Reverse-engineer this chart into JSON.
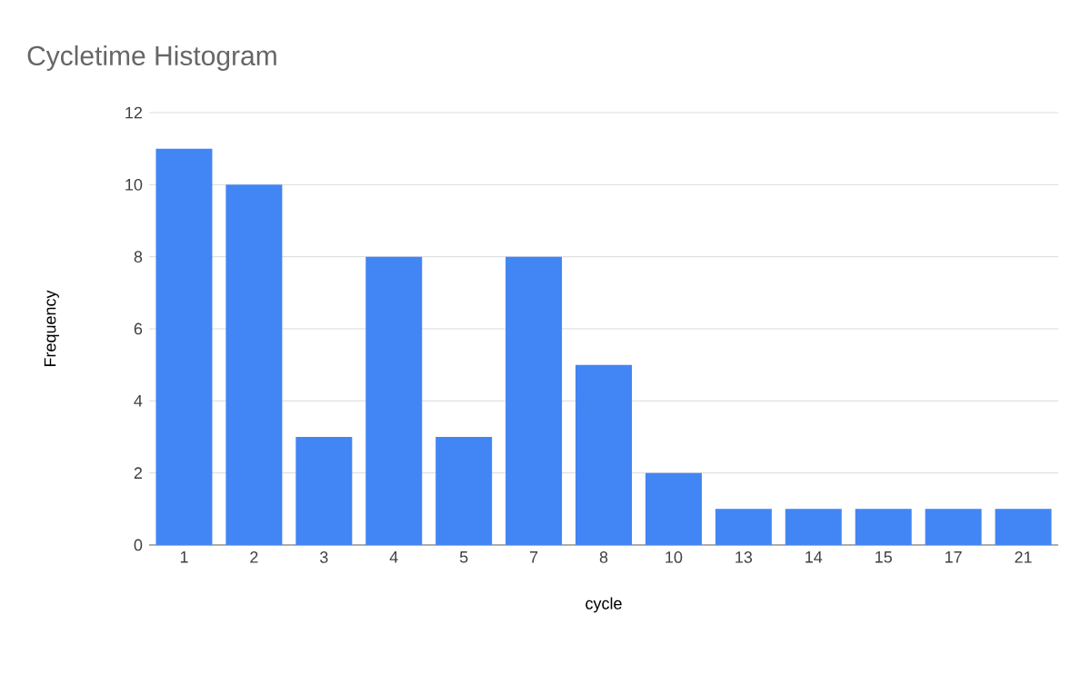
{
  "chart_data": {
    "type": "bar",
    "title": "Cycletime Histogram",
    "xlabel": "cycle",
    "ylabel": "Frequency",
    "categories": [
      "1",
      "2",
      "3",
      "4",
      "5",
      "7",
      "8",
      "10",
      "13",
      "14",
      "15",
      "17",
      "21"
    ],
    "values": [
      11,
      10,
      3,
      8,
      3,
      8,
      5,
      2,
      1,
      1,
      1,
      1,
      1
    ],
    "color": "#4285f4",
    "ylim": [
      0,
      12
    ],
    "yticks": [
      0,
      2,
      4,
      6,
      8,
      10,
      12
    ],
    "grid": "y"
  }
}
